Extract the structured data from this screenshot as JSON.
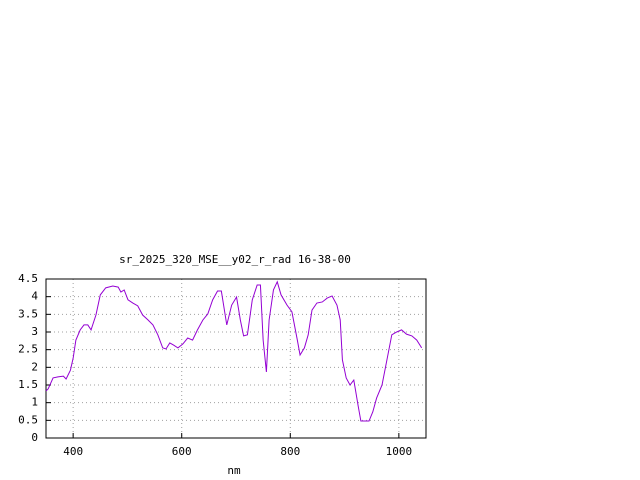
{
  "chart_data": {
    "type": "line",
    "title": "sr_2025_320_MSE__y02_r_rad 16-38-00",
    "xlabel": "nm",
    "x": [
      350,
      354,
      363,
      372,
      382,
      387,
      395,
      400,
      405,
      413,
      420,
      427,
      433,
      442,
      450,
      460,
      473,
      483,
      488,
      494,
      501,
      510,
      519,
      528,
      538,
      547,
      556,
      565,
      571,
      578,
      585,
      593,
      602,
      611,
      620,
      629,
      639,
      648,
      657,
      666,
      673,
      683,
      692,
      701,
      708,
      714,
      721,
      730,
      739,
      745,
      750,
      756,
      761,
      769,
      776,
      783,
      794,
      803,
      813,
      818,
      826,
      833,
      840,
      849,
      859,
      868,
      877,
      886,
      892,
      896,
      903,
      910,
      917,
      925,
      930,
      938,
      945,
      952,
      959,
      969,
      978,
      987,
      996,
      1005,
      1014,
      1024,
      1033,
      1042
    ],
    "series": [
      {
        "color": "#9400d3",
        "values": [
          1.33,
          1.39,
          1.7,
          1.73,
          1.75,
          1.67,
          1.92,
          2.26,
          2.77,
          3.06,
          3.2,
          3.2,
          3.06,
          3.48,
          4.05,
          4.25,
          4.3,
          4.27,
          4.13,
          4.19,
          3.91,
          3.82,
          3.74,
          3.48,
          3.34,
          3.2,
          2.92,
          2.55,
          2.52,
          2.69,
          2.63,
          2.55,
          2.66,
          2.83,
          2.77,
          3.06,
          3.34,
          3.51,
          3.91,
          4.16,
          4.16,
          3.2,
          3.76,
          3.99,
          3.34,
          2.89,
          2.92,
          3.91,
          4.33,
          4.33,
          2.77,
          1.87,
          3.34,
          4.19,
          4.42,
          4.05,
          3.76,
          3.57,
          2.77,
          2.35,
          2.55,
          2.92,
          3.62,
          3.82,
          3.85,
          3.96,
          4.02,
          3.76,
          3.34,
          2.21,
          1.7,
          1.5,
          1.64,
          0.91,
          0.48,
          0.48,
          0.48,
          0.74,
          1.13,
          1.5,
          2.21,
          2.92,
          3.0,
          3.06,
          2.94,
          2.89,
          2.77,
          2.55
        ]
      }
    ],
    "xlim": [
      350,
      1050
    ],
    "xticks": [
      400,
      600,
      800,
      1000
    ],
    "ylim": [
      0,
      4.5
    ],
    "yticks": [
      0,
      0.5,
      1,
      1.5,
      2,
      2.5,
      3,
      3.5,
      4,
      4.5
    ],
    "grid": true
  }
}
